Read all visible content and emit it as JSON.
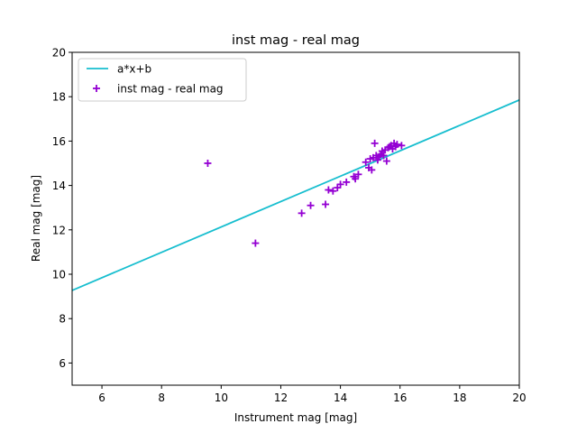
{
  "chart_data": {
    "type": "scatter",
    "title": "inst mag - real mag",
    "xlabel": "Instrument mag [mag]",
    "ylabel": "Real mag [mag]",
    "xlim": [
      5,
      20
    ],
    "ylim": [
      5,
      20
    ],
    "xticks": [
      6,
      8,
      10,
      12,
      14,
      16,
      18,
      20
    ],
    "yticks": [
      6,
      8,
      10,
      12,
      14,
      16,
      18,
      20
    ],
    "grid": false,
    "legend_position": "top-left",
    "series": [
      {
        "name": "a*x+b",
        "kind": "line",
        "color": "#17becf",
        "x": [
          5,
          20
        ],
        "y": [
          9.27,
          17.85
        ]
      },
      {
        "name": "inst mag - real mag",
        "kind": "scatter",
        "marker": "plus",
        "color": "#9400d3",
        "points": [
          [
            9.55,
            15.0
          ],
          [
            11.15,
            11.4
          ],
          [
            12.7,
            12.75
          ],
          [
            13.0,
            13.1
          ],
          [
            13.5,
            13.15
          ],
          [
            13.6,
            13.8
          ],
          [
            13.75,
            13.75
          ],
          [
            13.9,
            13.9
          ],
          [
            14.0,
            14.05
          ],
          [
            14.2,
            14.15
          ],
          [
            14.45,
            14.4
          ],
          [
            14.5,
            14.3
          ],
          [
            14.6,
            14.5
          ],
          [
            14.85,
            15.05
          ],
          [
            14.95,
            14.8
          ],
          [
            15.05,
            14.7
          ],
          [
            15.0,
            15.2
          ],
          [
            15.1,
            15.25
          ],
          [
            15.15,
            15.9
          ],
          [
            15.2,
            15.35
          ],
          [
            15.3,
            15.3
          ],
          [
            15.35,
            15.4
          ],
          [
            15.4,
            15.55
          ],
          [
            15.5,
            15.6
          ],
          [
            15.55,
            15.1
          ],
          [
            15.6,
            15.7
          ],
          [
            15.65,
            15.75
          ],
          [
            15.7,
            15.8
          ],
          [
            15.75,
            15.65
          ],
          [
            15.8,
            15.9
          ],
          [
            15.85,
            15.75
          ],
          [
            15.9,
            15.85
          ],
          [
            16.05,
            15.8
          ],
          [
            15.25,
            15.15
          ],
          [
            15.45,
            15.35
          ]
        ]
      }
    ]
  }
}
